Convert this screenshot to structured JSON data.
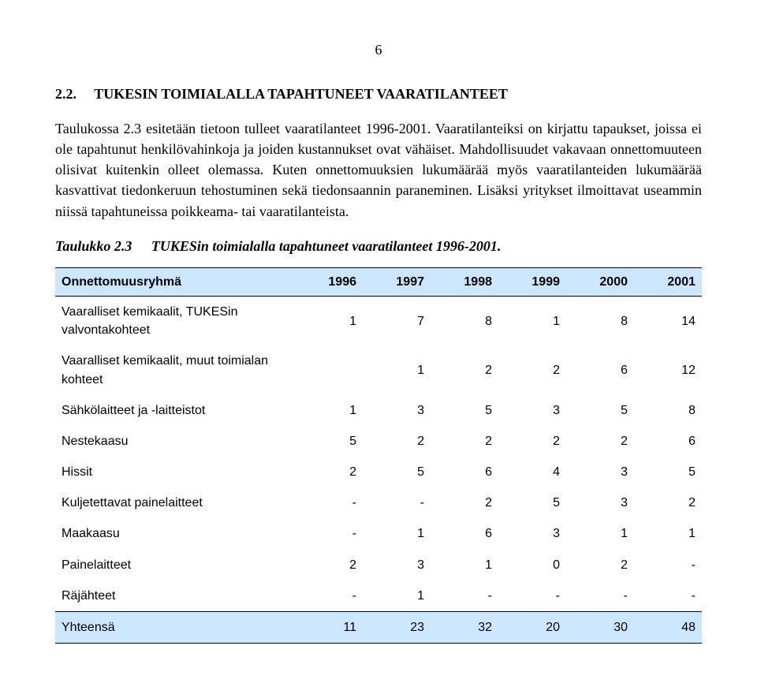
{
  "page_number": "6",
  "heading_number": "2.2.",
  "heading_text": "TUKESIN TOIMIALALLA TAPAHTUNEET VAARATILANTEET",
  "paragraph": "Taulukossa 2.3 esitetään tietoon tulleet vaaratilanteet 1996-2001. Vaaratilanteiksi on kirjattu tapaukset, joissa ei ole tapahtunut henkilövahinkoja ja joiden kustannukset ovat vähäiset. Mahdollisuudet vakavaan onnettomuuteen olisivat kuitenkin olleet olemassa. Kuten onnettomuuksien lukumäärää myös vaaratilanteiden lukumäärää kasvattivat tiedonkeruun tehostuminen sekä tiedonsaannin paraneminen. Lisäksi yritykset ilmoittavat useammin niissä tapahtuneissa poikkeama- tai vaaratilanteista.",
  "table_label": "Taulukko 2.3",
  "table_caption": "TUKESin toimialalla tapahtuneet vaaratilanteet 1996-2001.",
  "table": {
    "header": {
      "group_label": "Onnettomuusryhmä",
      "years": [
        "1996",
        "1997",
        "1998",
        "1999",
        "2000",
        "2001"
      ]
    },
    "rows": [
      {
        "label": "Vaaralliset kemikaalit, TUKESin valvontakohteet",
        "cells": [
          "1",
          "7",
          "8",
          "1",
          "8",
          "14"
        ]
      },
      {
        "label": "Vaaralliset kemikaalit, muut toimialan kohteet",
        "cells": [
          "",
          "1",
          "2",
          "2",
          "6",
          "12"
        ]
      },
      {
        "label": "Sähkölaitteet ja -laitteistot",
        "cells": [
          "1",
          "3",
          "5",
          "3",
          "5",
          "8"
        ]
      },
      {
        "label": "Nestekaasu",
        "cells": [
          "5",
          "2",
          "2",
          "2",
          "2",
          "6"
        ]
      },
      {
        "label": "Hissit",
        "cells": [
          "2",
          "5",
          "6",
          "4",
          "3",
          "5"
        ]
      },
      {
        "label": "Kuljetettavat painelaitteet",
        "cells": [
          "-",
          "-",
          "2",
          "5",
          "3",
          "2"
        ]
      },
      {
        "label": "Maakaasu",
        "cells": [
          "-",
          "1",
          "6",
          "3",
          "1",
          "1"
        ]
      },
      {
        "label": "Painelaitteet",
        "cells": [
          "2",
          "3",
          "1",
          "0",
          "2",
          "-"
        ]
      },
      {
        "label": "Räjähteet",
        "cells": [
          "-",
          "1",
          "-",
          "-",
          "-",
          "-"
        ]
      }
    ],
    "total": {
      "label": "Yhteensä",
      "cells": [
        "11",
        "23",
        "32",
        "20",
        "30",
        "48"
      ]
    }
  }
}
